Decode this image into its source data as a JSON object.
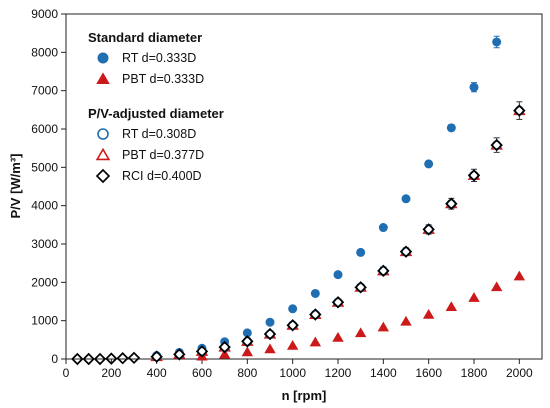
{
  "chart_data": {
    "type": "scatter",
    "title": "",
    "xlabel": "n [rpm]",
    "ylabel": "P/V [W/m³]",
    "xlim": [
      0,
      2100
    ],
    "ylim": [
      0,
      9000
    ],
    "xticks": [
      0,
      200,
      400,
      600,
      800,
      1000,
      1200,
      1400,
      1600,
      1800,
      2000
    ],
    "yticks": [
      0,
      1000,
      2000,
      3000,
      4000,
      5000,
      6000,
      7000,
      8000,
      9000
    ],
    "grid": false,
    "legend_position": "top-left",
    "legend_groups": [
      {
        "heading": "Standard diameter",
        "series": [
          0,
          1
        ]
      },
      {
        "heading": "P/V-adjusted diameter",
        "series": [
          2,
          3,
          4
        ]
      }
    ],
    "series": [
      {
        "name": "RT d=0.333D",
        "marker": "circle",
        "filled": true,
        "color": "#1f6fb2",
        "x": [
          400,
          500,
          600,
          700,
          800,
          900,
          1000,
          1100,
          1200,
          1300,
          1400,
          1500,
          1600,
          1700,
          1800,
          1900
        ],
        "y": [
          90,
          170,
          280,
          450,
          680,
          960,
          1310,
          1710,
          2200,
          2780,
          3430,
          4180,
          5090,
          6030,
          7090,
          8270
        ],
        "err": [
          0,
          0,
          0,
          0,
          0,
          0,
          0,
          0,
          0,
          0,
          0,
          0,
          0,
          80,
          120,
          150
        ]
      },
      {
        "name": "PBT d=0.333D",
        "marker": "triangle",
        "filled": true,
        "color": "#cc1a1a",
        "x": [
          600,
          700,
          800,
          900,
          1000,
          1100,
          1200,
          1300,
          1400,
          1500,
          1600,
          1700,
          1800,
          1900,
          2000
        ],
        "y": [
          70,
          120,
          180,
          260,
          350,
          440,
          560,
          680,
          830,
          980,
          1160,
          1360,
          1600,
          1880,
          2160
        ]
      },
      {
        "name": "RT d=0.308D",
        "marker": "circle",
        "filled": false,
        "color": "#1f6fb2",
        "x": [
          400,
          500,
          600,
          700,
          800,
          900,
          1000,
          1100,
          1200,
          1300,
          1400,
          1500,
          1600,
          1700,
          1800,
          1900,
          2000
        ],
        "y": [
          60,
          120,
          200,
          310,
          460,
          650,
          880,
          1160,
          1480,
          1870,
          2300,
          2800,
          3380,
          4050,
          4790,
          5580,
          6480
        ],
        "err": [
          0,
          0,
          0,
          0,
          0,
          0,
          60,
          60,
          80,
          80,
          100,
          100,
          120,
          140,
          160,
          190,
          230
        ]
      },
      {
        "name": "PBT d=0.377D",
        "marker": "triangle",
        "filled": false,
        "color": "#cc1a1a",
        "x": [
          400,
          500,
          600,
          700,
          800,
          900,
          1000,
          1100,
          1200,
          1300,
          1400,
          1500,
          1600,
          1700,
          1800,
          1900,
          2000
        ],
        "y": [
          60,
          120,
          200,
          310,
          460,
          650,
          880,
          1160,
          1480,
          1870,
          2300,
          2800,
          3380,
          4050,
          4790,
          5580,
          6480
        ]
      },
      {
        "name": "RCI d=0.400D",
        "marker": "diamond",
        "filled": false,
        "color": "#000000",
        "x": [
          50,
          100,
          150,
          200,
          250,
          300,
          400,
          500,
          600,
          700,
          800,
          900,
          1000,
          1100,
          1200,
          1300,
          1400,
          1500,
          1600,
          1700,
          1800,
          1900,
          2000
        ],
        "y": [
          0,
          0,
          0,
          10,
          20,
          30,
          60,
          120,
          200,
          310,
          460,
          650,
          880,
          1160,
          1480,
          1870,
          2300,
          2800,
          3380,
          4050,
          4790,
          5580,
          6480
        ]
      }
    ]
  }
}
